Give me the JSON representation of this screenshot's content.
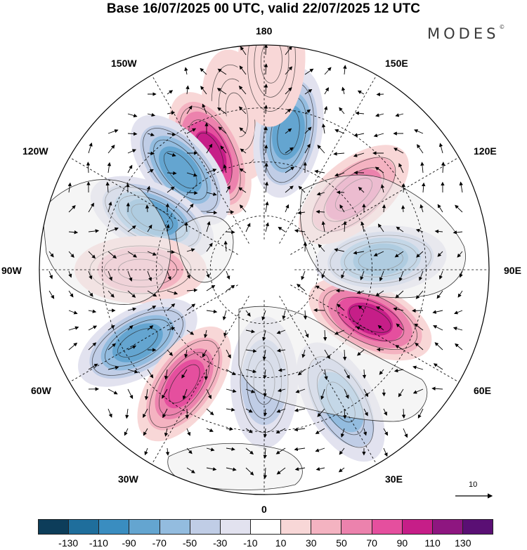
{
  "title": "Base 16/07/2025 00 UTC, valid 22/07/2025 12 UTC",
  "brand": "MODES",
  "brand_mark": "©",
  "longitude_labels": {
    "top": "180",
    "bottom": "0",
    "left": "90W",
    "right": "90E",
    "upper_left": "150W",
    "upper_right": "150E",
    "left_upper": "120W",
    "right_upper": "120E",
    "left_lower": "60W",
    "right_lower": "60E",
    "lower_left": "30W",
    "lower_right": "30E"
  },
  "vector_scale_label": "10",
  "colorbar": {
    "colors": [
      "#0d3d5a",
      "#1f6e9c",
      "#3a8dc0",
      "#64a5d0",
      "#93bcdf",
      "#c0cde6",
      "#e2e2ef",
      "#ffffff",
      "#f8d7d7",
      "#f4b3c1",
      "#ec82ad",
      "#e54f9e",
      "#c61e88",
      "#8e1680",
      "#5a0f74"
    ],
    "labels": [
      "-130",
      "-110",
      "-90",
      "-70",
      "-50",
      "-30",
      "-10",
      "10",
      "30",
      "50",
      "70",
      "90",
      "110",
      "130"
    ]
  },
  "anomalies": [
    {
      "lon_deg": -170,
      "r_frac": 0.7,
      "value": 25
    },
    {
      "lon_deg": -155,
      "r_frac": 0.57,
      "value": 105
    },
    {
      "lon_deg": -140,
      "r_frac": 0.58,
      "value": -75
    },
    {
      "lon_deg": -115,
      "r_frac": 0.55,
      "value": -80
    },
    {
      "lon_deg": -90,
      "r_frac": 0.55,
      "value": 30
    },
    {
      "lon_deg": -60,
      "r_frac": 0.65,
      "value": -80
    },
    {
      "lon_deg": -35,
      "r_frac": 0.62,
      "value": 85
    },
    {
      "lon_deg": 0,
      "r_frac": 0.5,
      "value": -30
    },
    {
      "lon_deg": 30,
      "r_frac": 0.68,
      "value": -55
    },
    {
      "lon_deg": 65,
      "r_frac": 0.52,
      "value": 90
    },
    {
      "lon_deg": 95,
      "r_frac": 0.52,
      "value": -85
    },
    {
      "lon_deg": 130,
      "r_frac": 0.52,
      "value": 50
    },
    {
      "lon_deg": 170,
      "r_frac": 0.62,
      "value": -85
    },
    {
      "lon_deg": 178,
      "r_frac": 0.93,
      "value": 20
    }
  ]
}
